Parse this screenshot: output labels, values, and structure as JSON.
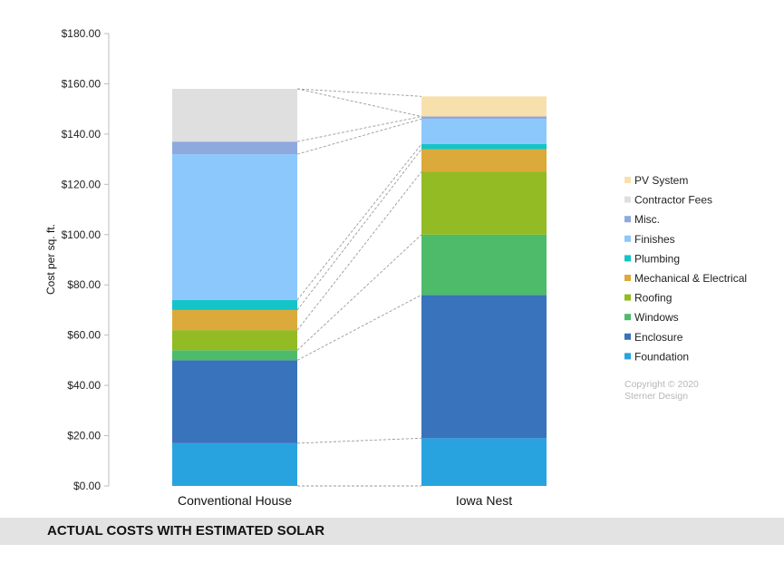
{
  "chart_data": {
    "type": "bar",
    "stacked": true,
    "categories": [
      "Conventional House",
      "Iowa Nest"
    ],
    "ylabel": "Cost per sq. ft.",
    "xlabel": "",
    "ylim": [
      0,
      180
    ],
    "yticks": [
      0,
      20,
      40,
      60,
      80,
      100,
      120,
      140,
      160,
      180
    ],
    "ytick_labels": [
      "$0.00",
      "$20.00",
      "$40.00",
      "$60.00",
      "$80.00",
      "$100.00",
      "$120.00",
      "$140.00",
      "$160.00",
      "$180.00"
    ],
    "connector_lines": true,
    "series": [
      {
        "name": "Foundation",
        "color": "#29a3e0",
        "values": [
          17,
          19
        ]
      },
      {
        "name": "Enclosure",
        "color": "#3873bc",
        "values": [
          33,
          57
        ]
      },
      {
        "name": "Windows",
        "color": "#4ebb6a",
        "values": [
          4,
          24
        ]
      },
      {
        "name": "Roofing",
        "color": "#93bb23",
        "values": [
          8,
          25
        ]
      },
      {
        "name": "Mechanical & Electrical",
        "color": "#dcaa3a",
        "values": [
          8,
          9
        ]
      },
      {
        "name": "Plumbing",
        "color": "#14c4c8",
        "values": [
          4,
          2
        ]
      },
      {
        "name": "Finishes",
        "color": "#8cc8fb",
        "values": [
          58,
          10
        ]
      },
      {
        "name": "Misc.",
        "color": "#8ea9dd",
        "values": [
          5,
          1
        ]
      },
      {
        "name": "Contractor Fees",
        "color": "#dfdfdf",
        "values": [
          21,
          0
        ]
      },
      {
        "name": "PV System",
        "color": "#f8e0ad",
        "values": [
          0,
          8
        ]
      }
    ],
    "legend_order": [
      "PV System",
      "Contractor Fees",
      "Misc.",
      "Finishes",
      "Plumbing",
      "Mechanical & Electrical",
      "Roofing",
      "Windows",
      "Enclosure",
      "Foundation"
    ],
    "legend_position": "right"
  },
  "copyright": {
    "line1": "Copyright © 2020",
    "line2": "Sterner Design"
  },
  "footer": {
    "title": "ACTUAL COSTS WITH ESTIMATED SOLAR"
  }
}
